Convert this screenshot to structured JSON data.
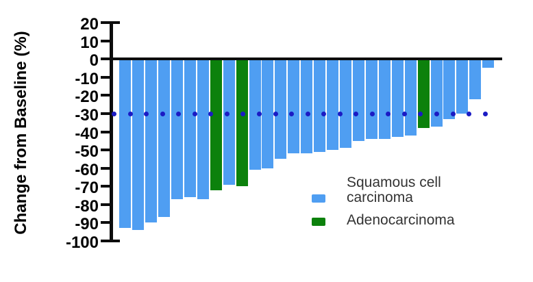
{
  "chart_data": {
    "type": "bar",
    "subtype": "waterfall",
    "title": "",
    "xlabel": "",
    "ylabel": "Change from Baseline (%)",
    "ylim": [
      -100,
      20
    ],
    "yticks": [
      20,
      10,
      0,
      -10,
      -20,
      -30,
      -40,
      -50,
      -60,
      -70,
      -80,
      -90,
      -100
    ],
    "grid": false,
    "reference_line": {
      "value": -30,
      "style": "dotted",
      "color": "#1b1bc4",
      "dot_count": 24
    },
    "colors": {
      "squamous": "#4f9ef2",
      "adeno": "#0c810c"
    },
    "bars": [
      {
        "value": -93,
        "group": "squamous"
      },
      {
        "value": -94,
        "group": "squamous"
      },
      {
        "value": -90,
        "group": "squamous"
      },
      {
        "value": -87,
        "group": "squamous"
      },
      {
        "value": -77,
        "group": "squamous"
      },
      {
        "value": -76,
        "group": "squamous"
      },
      {
        "value": -77,
        "group": "squamous"
      },
      {
        "value": -72,
        "group": "adeno"
      },
      {
        "value": -69,
        "group": "squamous"
      },
      {
        "value": -70,
        "group": "adeno"
      },
      {
        "value": -61,
        "group": "squamous"
      },
      {
        "value": -60,
        "group": "squamous"
      },
      {
        "value": -55,
        "group": "squamous"
      },
      {
        "value": -52,
        "group": "squamous"
      },
      {
        "value": -52,
        "group": "squamous"
      },
      {
        "value": -51,
        "group": "squamous"
      },
      {
        "value": -50,
        "group": "squamous"
      },
      {
        "value": -49,
        "group": "squamous"
      },
      {
        "value": -45,
        "group": "squamous"
      },
      {
        "value": -44,
        "group": "squamous"
      },
      {
        "value": -44,
        "group": "squamous"
      },
      {
        "value": -43,
        "group": "squamous"
      },
      {
        "value": -42,
        "group": "squamous"
      },
      {
        "value": -38,
        "group": "adeno"
      },
      {
        "value": -37,
        "group": "squamous"
      },
      {
        "value": -33,
        "group": "squamous"
      },
      {
        "value": -30,
        "group": "squamous"
      },
      {
        "value": -22,
        "group": "squamous"
      },
      {
        "value": -5,
        "group": "squamous"
      }
    ]
  },
  "legend": {
    "items": [
      {
        "id": "squamous",
        "label": "Squamous cell carcinoma",
        "color": "#4f9ef2"
      },
      {
        "id": "adeno",
        "label": "Adenocarcinoma",
        "color": "#0c810c"
      }
    ]
  }
}
